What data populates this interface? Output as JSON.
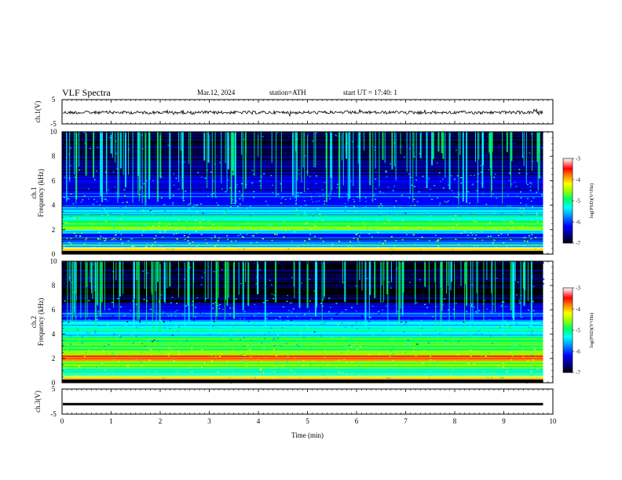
{
  "header": {
    "title": "VLF  Spectra",
    "date": "Mar.12, 2024",
    "station": "station=ATH",
    "start": "start  UT  =   17:40: 1"
  },
  "chart_data": [
    {
      "type": "line",
      "panel": "ch1-waveform",
      "ylabel": "ch.1(V)",
      "y_ticks": [
        "5",
        "-5"
      ],
      "ylim": [
        -5,
        5
      ],
      "trace_level_v": -0.3,
      "trace_color": "#000000"
    },
    {
      "type": "heatmap",
      "panel": "ch1-spectrogram",
      "ylabel_top": "ch.1",
      "ylabel": "Frequency (kHz)",
      "y_ticks": [
        "0",
        "2",
        "4",
        "6",
        "8",
        "10"
      ],
      "ylim": [
        0,
        10
      ],
      "data_end_min": 9.8,
      "colorbar": {
        "label": "log(PSD)(V²/Hz)",
        "ticks": [
          "-3",
          "-4",
          "-5",
          "-6",
          "-7"
        ],
        "range": [
          -7,
          -3
        ]
      }
    },
    {
      "type": "heatmap",
      "panel": "ch2-spectrogram",
      "ylabel_top": "ch.2",
      "ylabel": "Frequency (kHz)",
      "y_ticks": [
        "0",
        "2",
        "4",
        "6",
        "8",
        "10"
      ],
      "ylim": [
        0,
        10
      ],
      "data_end_min": 9.8,
      "colorbar": {
        "label": "log(PSD)(V²/Hz)",
        "ticks": [
          "-3",
          "-4",
          "-5",
          "-6",
          "-7"
        ],
        "range": [
          -7,
          -3
        ]
      }
    },
    {
      "type": "line",
      "panel": "ch3-waveform",
      "ylabel": "ch.3(V)",
      "y_ticks": [
        "5",
        "-5"
      ],
      "ylim": [
        -5,
        5
      ],
      "trace_level_v": -1.0,
      "trace_color": "#000000"
    }
  ],
  "x_axis": {
    "label": "Time  (min)",
    "ticks": [
      "0",
      "1",
      "2",
      "3",
      "4",
      "5",
      "6",
      "7",
      "8",
      "9",
      "10"
    ],
    "xlim": [
      0,
      10
    ]
  },
  "colorscale": [
    "#000000",
    "#000080",
    "#0000ff",
    "#0096ff",
    "#00ffff",
    "#00ff64",
    "#96ff00",
    "#ffff00",
    "#ff9600",
    "#ff0000",
    "#ffffff"
  ]
}
